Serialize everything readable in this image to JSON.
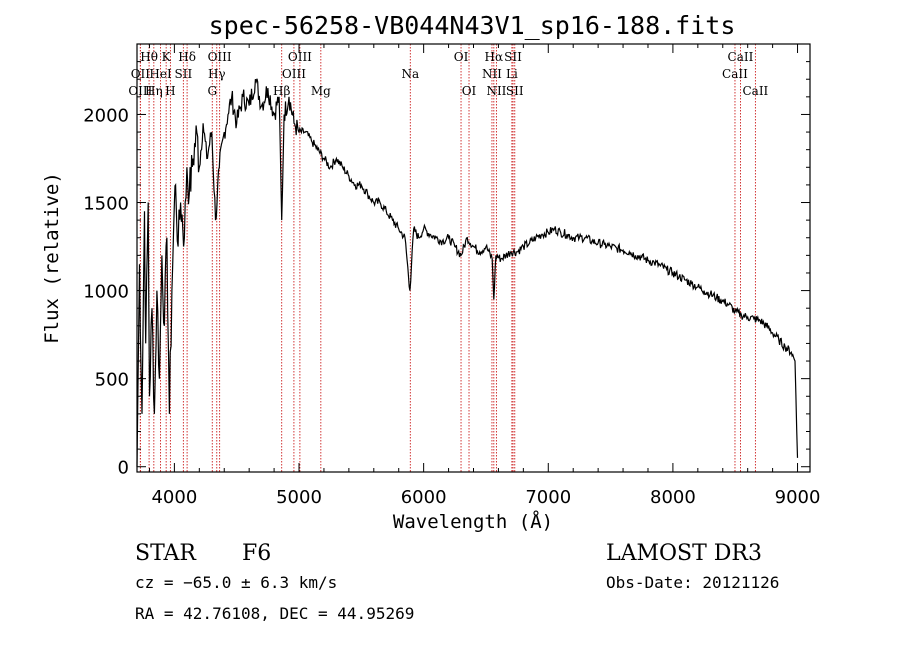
{
  "chart_data": {
    "type": "line",
    "title": "spec-56258-VB044N43V1_sp16-188.fits",
    "xlabel": "Wavelength (Å)",
    "ylabel": "Flux (relative)",
    "xlim": [
      3700,
      9100
    ],
    "ylim": [
      -30,
      2400
    ],
    "x_ticks": [
      4000,
      5000,
      6000,
      7000,
      8000,
      9000
    ],
    "y_ticks": [
      0,
      500,
      1000,
      1500,
      2000
    ],
    "series": [
      {
        "name": "flux",
        "points": [
          [
            3700,
            0
          ],
          [
            3720,
            1150
          ],
          [
            3740,
            300
          ],
          [
            3760,
            1450
          ],
          [
            3770,
            700
          ],
          [
            3790,
            1500
          ],
          [
            3800,
            400
          ],
          [
            3820,
            900
          ],
          [
            3840,
            300
          ],
          [
            3860,
            1000
          ],
          [
            3880,
            500
          ],
          [
            3900,
            1200
          ],
          [
            3920,
            800
          ],
          [
            3940,
            1300
          ],
          [
            3960,
            300
          ],
          [
            3980,
            1000
          ],
          [
            4000,
            1500
          ],
          [
            4010,
            1600
          ],
          [
            4030,
            1250
          ],
          [
            4050,
            1500
          ],
          [
            4080,
            1300
          ],
          [
            4100,
            1700
          ],
          [
            4120,
            1550
          ],
          [
            4150,
            1750
          ],
          [
            4180,
            1900
          ],
          [
            4200,
            1700
          ],
          [
            4230,
            1950
          ],
          [
            4260,
            1750
          ],
          [
            4300,
            1900
          ],
          [
            4330,
            1400
          ],
          [
            4360,
            1700
          ],
          [
            4400,
            1900
          ],
          [
            4430,
            2000
          ],
          [
            4460,
            2100
          ],
          [
            4500,
            1950
          ],
          [
            4550,
            2100
          ],
          [
            4600,
            2050
          ],
          [
            4650,
            2200
          ],
          [
            4700,
            2050
          ],
          [
            4750,
            2150
          ],
          [
            4800,
            2000
          ],
          [
            4840,
            2100
          ],
          [
            4861,
            1400
          ],
          [
            4880,
            2000
          ],
          [
            4920,
            2100
          ],
          [
            4960,
            1950
          ],
          [
            5000,
            1900
          ],
          [
            5050,
            1900
          ],
          [
            5100,
            1850
          ],
          [
            5150,
            1800
          ],
          [
            5200,
            1750
          ],
          [
            5250,
            1700
          ],
          [
            5300,
            1750
          ],
          [
            5350,
            1700
          ],
          [
            5400,
            1650
          ],
          [
            5450,
            1600
          ],
          [
            5500,
            1600
          ],
          [
            5550,
            1550
          ],
          [
            5600,
            1500
          ],
          [
            5650,
            1500
          ],
          [
            5700,
            1450
          ],
          [
            5750,
            1400
          ],
          [
            5800,
            1350
          ],
          [
            5850,
            1300
          ],
          [
            5890,
            1000
          ],
          [
            5920,
            1350
          ],
          [
            5960,
            1300
          ],
          [
            6000,
            1350
          ],
          [
            6050,
            1320
          ],
          [
            6100,
            1300
          ],
          [
            6150,
            1280
          ],
          [
            6200,
            1300
          ],
          [
            6250,
            1250
          ],
          [
            6300,
            1200
          ],
          [
            6350,
            1300
          ],
          [
            6400,
            1250
          ],
          [
            6450,
            1220
          ],
          [
            6500,
            1250
          ],
          [
            6550,
            1180
          ],
          [
            6563,
            950
          ],
          [
            6580,
            1200
          ],
          [
            6620,
            1180
          ],
          [
            6660,
            1200
          ],
          [
            6700,
            1220
          ],
          [
            6750,
            1220
          ],
          [
            6800,
            1250
          ],
          [
            6850,
            1270
          ],
          [
            6900,
            1300
          ],
          [
            6950,
            1320
          ],
          [
            7000,
            1330
          ],
          [
            7050,
            1350
          ],
          [
            7100,
            1330
          ],
          [
            7150,
            1320
          ],
          [
            7200,
            1300
          ],
          [
            7250,
            1300
          ],
          [
            7300,
            1300
          ],
          [
            7350,
            1280
          ],
          [
            7400,
            1270
          ],
          [
            7450,
            1260
          ],
          [
            7500,
            1250
          ],
          [
            7550,
            1240
          ],
          [
            7600,
            1230
          ],
          [
            7650,
            1220
          ],
          [
            7700,
            1200
          ],
          [
            7750,
            1190
          ],
          [
            7800,
            1170
          ],
          [
            7850,
            1160
          ],
          [
            7900,
            1140
          ],
          [
            7950,
            1120
          ],
          [
            8000,
            1100
          ],
          [
            8050,
            1080
          ],
          [
            8100,
            1060
          ],
          [
            8150,
            1040
          ],
          [
            8200,
            1020
          ],
          [
            8250,
            1000
          ],
          [
            8300,
            980
          ],
          [
            8350,
            960
          ],
          [
            8400,
            940
          ],
          [
            8450,
            920
          ],
          [
            8500,
            880
          ],
          [
            8550,
            860
          ],
          [
            8600,
            850
          ],
          [
            8650,
            840
          ],
          [
            8700,
            830
          ],
          [
            8750,
            800
          ],
          [
            8800,
            760
          ],
          [
            8850,
            720
          ],
          [
            8900,
            680
          ],
          [
            8950,
            650
          ],
          [
            8980,
            600
          ],
          [
            9000,
            50
          ]
        ]
      }
    ],
    "spectral_lines": [
      {
        "label": "Hθ",
        "x": 3797,
        "row": 0
      },
      {
        "label": "OII",
        "x": 3727,
        "row": 1
      },
      {
        "label": "OIII",
        "x": 3727,
        "row": 2
      },
      {
        "label": "HeI",
        "x": 3889,
        "row": 1
      },
      {
        "label": "Hη",
        "x": 3835,
        "row": 2
      },
      {
        "label": "K",
        "x": 3934,
        "row": 0
      },
      {
        "label": "H",
        "x": 3968,
        "row": 2
      },
      {
        "label": "SII",
        "x": 4072,
        "row": 1
      },
      {
        "label": "Hδ",
        "x": 4102,
        "row": 0
      },
      {
        "label": "OIII",
        "x": 4363,
        "row": 0
      },
      {
        "label": "Hγ",
        "x": 4340,
        "row": 1
      },
      {
        "label": "G",
        "x": 4304,
        "row": 2
      },
      {
        "label": "OIII",
        "x": 5007,
        "row": 0
      },
      {
        "label": "OIII",
        "x": 4959,
        "row": 1
      },
      {
        "label": "Hβ",
        "x": 4861,
        "row": 2
      },
      {
        "label": "Mg",
        "x": 5175,
        "row": 2
      },
      {
        "label": "Na",
        "x": 5893,
        "row": 1
      },
      {
        "label": "OI",
        "x": 6300,
        "row": 0
      },
      {
        "label": "OI",
        "x": 6364,
        "row": 2
      },
      {
        "label": "Hα",
        "x": 6563,
        "row": 0
      },
      {
        "label": "NII",
        "x": 6548,
        "row": 1
      },
      {
        "label": "NII",
        "x": 6584,
        "row": 2
      },
      {
        "label": "SII",
        "x": 6717,
        "row": 0
      },
      {
        "label": "Li",
        "x": 6708,
        "row": 1
      },
      {
        "label": "SII",
        "x": 6731,
        "row": 2
      },
      {
        "label": "CaII",
        "x": 8542,
        "row": 0
      },
      {
        "label": "CaII",
        "x": 8498,
        "row": 1
      },
      {
        "label": "CaII",
        "x": 8662,
        "row": 2
      }
    ]
  },
  "info": {
    "object_class": "STAR",
    "subclass": "F6",
    "survey": "LAMOST DR3",
    "redshift_text": "cz = −65.0 ± 6.3 km/s",
    "obs_date": "Obs-Date: 20121126",
    "coords": "RA =  42.76108, DEC =  44.95269"
  }
}
